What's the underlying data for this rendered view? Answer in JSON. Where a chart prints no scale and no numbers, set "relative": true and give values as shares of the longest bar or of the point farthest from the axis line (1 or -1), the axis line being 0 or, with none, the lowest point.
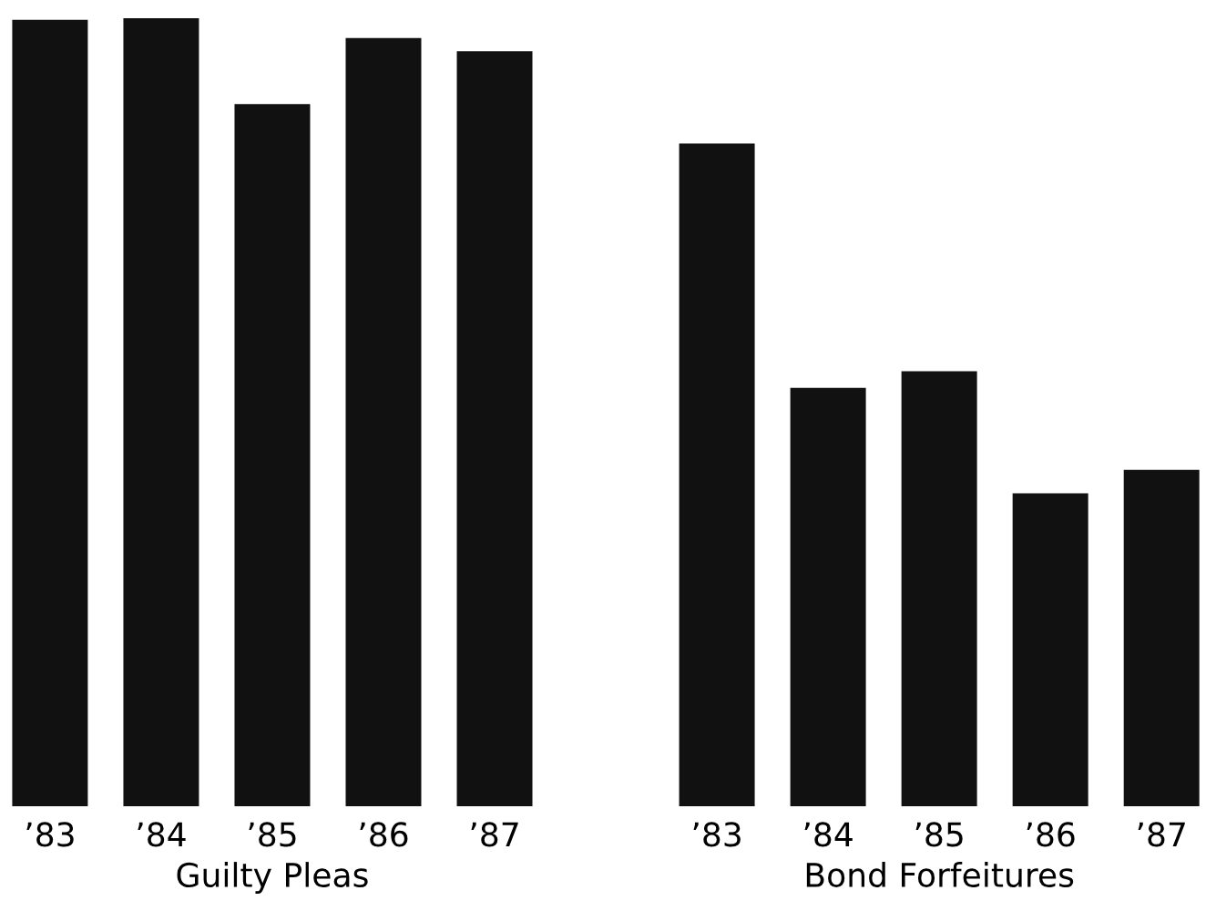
{
  "chart_data": {
    "type": "bar",
    "relative": true,
    "categories": [
      "’83",
      "’84",
      "’85",
      "’86",
      "’87",
      null,
      "’83",
      "’84",
      "’85",
      "’86",
      "’87"
    ],
    "values": [
      0.998,
      1,
      0.891,
      0.975,
      0.958,
      null,
      0.841,
      0.531,
      0.552,
      0.397,
      0.427
    ],
    "color": "#111111",
    "annotations": [
      "Guilty Pleas",
      "Bond Forfeitures"
    ],
    "grid": false,
    "legend": false
  }
}
